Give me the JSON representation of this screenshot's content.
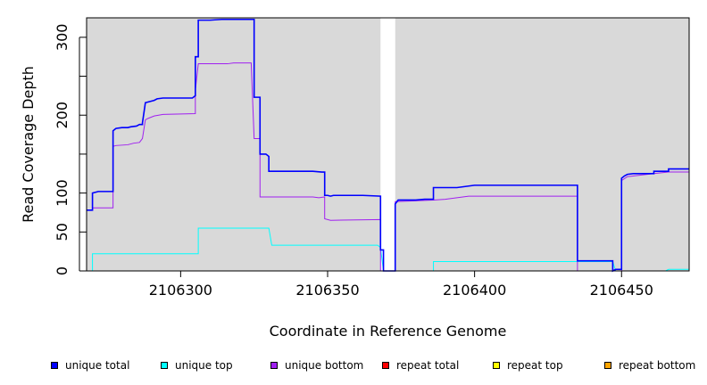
{
  "chart_data": {
    "type": "line",
    "xlabel": "Coordinate in Reference Genome",
    "ylabel": "Read Coverage Depth",
    "xlim": [
      2106268,
      2106473
    ],
    "ylim": [
      0,
      325
    ],
    "x_ticks": [
      2106300,
      2106350,
      2106400,
      2106450
    ],
    "y_ticks": [
      0,
      50,
      100,
      200,
      300
    ],
    "x_tick_labels": [
      "2106300",
      "2106350",
      "2106400",
      "2106450"
    ],
    "y_tick_labels": [
      "0",
      "50",
      "100",
      "200",
      "300"
    ],
    "grid": false,
    "background": "#d9d9d9",
    "gap_regions": [
      [
        2106368,
        2106373
      ]
    ],
    "legend_position": "bottom",
    "series": [
      {
        "name": "unique total",
        "color": "#0000ff",
        "points": [
          [
            2106268,
            78
          ],
          [
            2106270,
            78
          ],
          [
            2106270,
            100
          ],
          [
            2106272,
            102
          ],
          [
            2106275,
            102
          ],
          [
            2106275,
            102
          ],
          [
            2106276,
            102
          ],
          [
            2106277,
            102
          ],
          [
            2106277,
            180
          ],
          [
            2106278,
            183
          ],
          [
            2106280,
            184
          ],
          [
            2106282,
            184
          ],
          [
            2106283,
            185
          ],
          [
            2106285,
            186
          ],
          [
            2106286,
            188
          ],
          [
            2106287,
            188
          ],
          [
            2106287,
            190
          ],
          [
            2106288,
            216
          ],
          [
            2106289,
            217
          ],
          [
            2106291,
            219
          ],
          [
            2106292,
            221
          ],
          [
            2106294,
            222
          ],
          [
            2106300,
            222
          ],
          [
            2106304,
            222
          ],
          [
            2106305,
            225
          ],
          [
            2106305,
            275
          ],
          [
            2106306,
            275
          ],
          [
            2106306,
            322
          ],
          [
            2106310,
            322
          ],
          [
            2106314,
            323
          ],
          [
            2106325,
            323
          ],
          [
            2106325,
            223
          ],
          [
            2106327,
            223
          ],
          [
            2106327,
            150
          ],
          [
            2106329,
            150
          ],
          [
            2106330,
            147
          ],
          [
            2106330,
            128
          ],
          [
            2106345,
            128
          ],
          [
            2106348,
            127
          ],
          [
            2106349,
            127
          ],
          [
            2106349,
            97
          ],
          [
            2106350,
            97
          ],
          [
            2106351,
            96
          ],
          [
            2106352,
            97
          ],
          [
            2106362,
            97
          ],
          [
            2106368,
            96
          ],
          [
            2106368,
            27
          ],
          [
            2106369,
            27
          ],
          [
            2106369,
            0
          ],
          [
            2106373,
            0
          ],
          [
            2106373,
            86
          ],
          [
            2106374,
            91
          ],
          [
            2106380,
            91
          ],
          [
            2106383,
            92
          ],
          [
            2106386,
            92
          ],
          [
            2106386,
            107
          ],
          [
            2106394,
            107
          ],
          [
            2106396,
            108
          ],
          [
            2106398,
            109
          ],
          [
            2106400,
            110
          ],
          [
            2106435,
            110
          ],
          [
            2106435,
            13
          ],
          [
            2106447,
            13
          ],
          [
            2106447,
            0
          ],
          [
            2106448,
            2
          ],
          [
            2106450,
            2
          ],
          [
            2106450,
            119
          ],
          [
            2106451,
            122
          ],
          [
            2106452,
            124
          ],
          [
            2106454,
            125
          ],
          [
            2106461,
            125
          ],
          [
            2106461,
            128
          ],
          [
            2106466,
            128
          ],
          [
            2106466,
            131
          ],
          [
            2106473,
            131
          ]
        ]
      },
      {
        "name": "unique top",
        "color": "#00ffff",
        "points": [
          [
            2106268,
            0
          ],
          [
            2106270,
            0
          ],
          [
            2106270,
            22
          ],
          [
            2106306,
            22
          ],
          [
            2106306,
            55
          ],
          [
            2106330,
            55
          ],
          [
            2106331,
            33
          ],
          [
            2106367,
            33
          ],
          [
            2106368,
            30
          ],
          [
            2106368,
            30
          ],
          [
            2106369,
            0
          ],
          [
            2106386,
            0
          ],
          [
            2106386,
            12
          ],
          [
            2106447,
            12
          ],
          [
            2106448,
            0
          ],
          [
            2106465,
            0
          ],
          [
            2106466,
            2
          ],
          [
            2106473,
            2
          ]
        ]
      },
      {
        "name": "unique bottom",
        "color": "#a020f0",
        "points": [
          [
            2106268,
            78
          ],
          [
            2106270,
            78
          ],
          [
            2106270,
            81
          ],
          [
            2106277,
            81
          ],
          [
            2106277,
            160
          ],
          [
            2106278,
            161
          ],
          [
            2106282,
            162
          ],
          [
            2106284,
            164
          ],
          [
            2106286,
            165
          ],
          [
            2106287,
            170
          ],
          [
            2106288,
            194
          ],
          [
            2106289,
            196
          ],
          [
            2106291,
            199
          ],
          [
            2106294,
            201
          ],
          [
            2106305,
            202
          ],
          [
            2106305,
            232
          ],
          [
            2106306,
            266
          ],
          [
            2106316,
            266
          ],
          [
            2106318,
            267
          ],
          [
            2106324,
            267
          ],
          [
            2106325,
            170
          ],
          [
            2106327,
            170
          ],
          [
            2106327,
            95
          ],
          [
            2106345,
            95
          ],
          [
            2106347,
            94
          ],
          [
            2106349,
            95
          ],
          [
            2106349,
            67
          ],
          [
            2106351,
            65
          ],
          [
            2106368,
            66
          ],
          [
            2106368,
            0
          ],
          [
            2106373,
            0
          ],
          [
            2106373,
            89
          ],
          [
            2106386,
            91
          ],
          [
            2106390,
            92
          ],
          [
            2106394,
            94
          ],
          [
            2106398,
            96
          ],
          [
            2106435,
            96
          ],
          [
            2106435,
            0
          ],
          [
            2106450,
            0
          ],
          [
            2106450,
            116
          ],
          [
            2106452,
            121
          ],
          [
            2106461,
            125
          ],
          [
            2106466,
            127
          ],
          [
            2106473,
            127
          ]
        ]
      },
      {
        "name": "repeat total",
        "color": "#ff0000",
        "points": [
          [
            2106268,
            0
          ],
          [
            2106473,
            0
          ]
        ]
      },
      {
        "name": "repeat top",
        "color": "#ffff00",
        "points": [
          [
            2106268,
            0
          ],
          [
            2106473,
            0
          ]
        ]
      },
      {
        "name": "repeat bottom",
        "color": "#ffa500",
        "points": [
          [
            2106268,
            0
          ],
          [
            2106473,
            0
          ]
        ]
      }
    ]
  }
}
